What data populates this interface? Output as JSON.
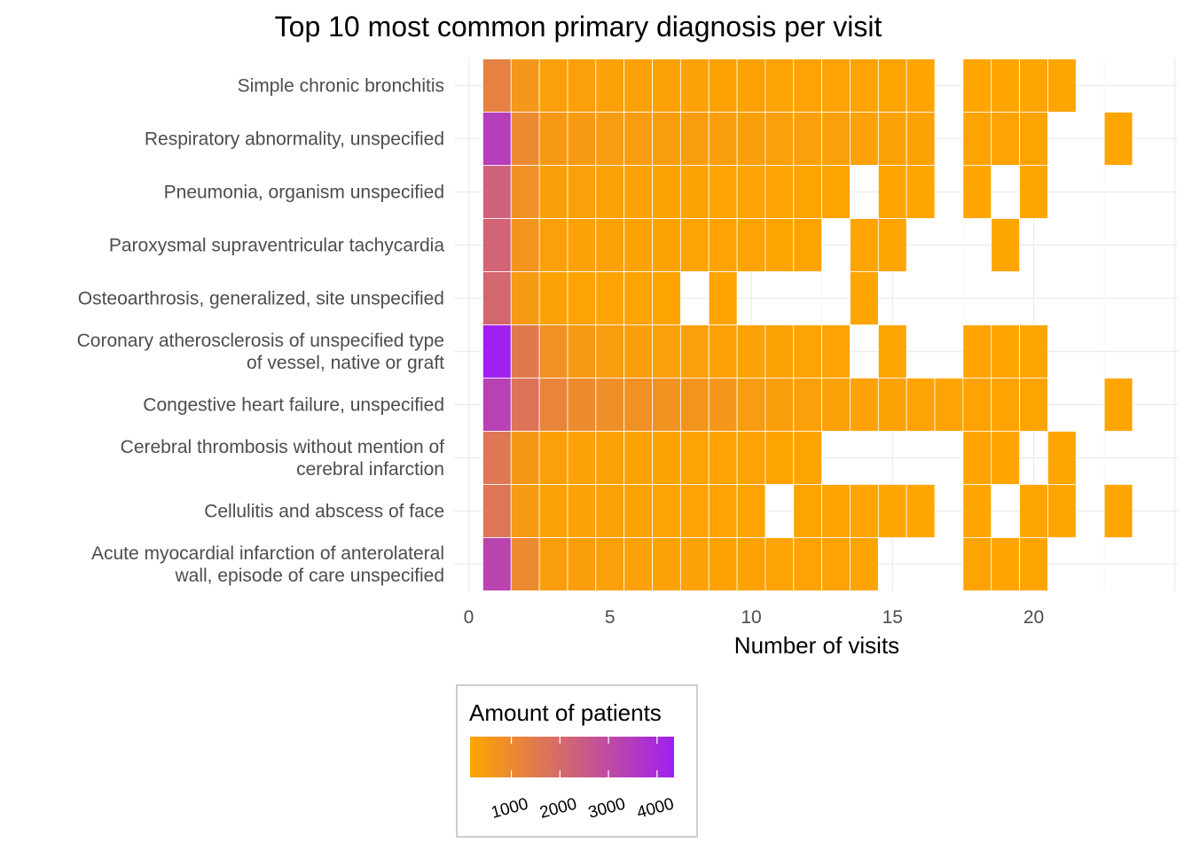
{
  "chart_data": {
    "type": "heatmap",
    "title": "Top 10 most common primary diagnosis per visit",
    "xlabel": "Number of visits",
    "ylabel": "",
    "xlim": [
      0,
      25
    ],
    "x_ticks": [
      0,
      5,
      10,
      15,
      20
    ],
    "grid": true,
    "legend_position": "bottom",
    "legend": {
      "title": "Amount of patients",
      "range": [
        150,
        4350
      ],
      "ticks": [
        1000,
        2000,
        3000,
        4000
      ],
      "color_low": "#FFA500",
      "color_high": "#A020F0"
    },
    "rows": [
      {
        "label_lines": [
          "Simple chronic bronchitis"
        ],
        "cells": [
          [
            1,
            1300
          ],
          [
            2,
            600
          ],
          [
            3,
            330
          ],
          [
            4,
            300
          ],
          [
            5,
            290
          ],
          [
            6,
            280
          ],
          [
            7,
            260
          ],
          [
            8,
            250
          ],
          [
            9,
            240
          ],
          [
            10,
            230
          ],
          [
            11,
            220
          ],
          [
            12,
            210
          ],
          [
            13,
            200
          ],
          [
            14,
            190
          ],
          [
            15,
            180
          ],
          [
            16,
            170
          ],
          [
            18,
            160
          ],
          [
            19,
            150
          ],
          [
            20,
            150
          ],
          [
            21,
            150
          ]
        ]
      },
      {
        "label_lines": [
          "Respiratory abnormality, unspecified"
        ],
        "cells": [
          [
            1,
            3400
          ],
          [
            2,
            1000
          ],
          [
            3,
            520
          ],
          [
            4,
            460
          ],
          [
            5,
            440
          ],
          [
            6,
            420
          ],
          [
            7,
            410
          ],
          [
            8,
            400
          ],
          [
            9,
            380
          ],
          [
            10,
            360
          ],
          [
            11,
            340
          ],
          [
            12,
            320
          ],
          [
            13,
            300
          ],
          [
            14,
            280
          ],
          [
            15,
            260
          ],
          [
            16,
            240
          ],
          [
            18,
            220
          ],
          [
            19,
            200
          ],
          [
            20,
            190
          ],
          [
            23,
            160
          ]
        ]
      },
      {
        "label_lines": [
          "Pneumonia, organism unspecified"
        ],
        "cells": [
          [
            1,
            2300
          ],
          [
            2,
            800
          ],
          [
            3,
            350
          ],
          [
            4,
            300
          ],
          [
            5,
            280
          ],
          [
            6,
            260
          ],
          [
            7,
            240
          ],
          [
            8,
            230
          ],
          [
            9,
            220
          ],
          [
            10,
            210
          ],
          [
            11,
            200
          ],
          [
            12,
            190
          ],
          [
            13,
            180
          ],
          [
            15,
            170
          ],
          [
            16,
            160
          ],
          [
            18,
            160
          ],
          [
            20,
            150
          ]
        ]
      },
      {
        "label_lines": [
          "Paroxysmal supraventricular tachycardia"
        ],
        "cells": [
          [
            1,
            2200
          ],
          [
            2,
            700
          ],
          [
            3,
            300
          ],
          [
            4,
            280
          ],
          [
            5,
            260
          ],
          [
            6,
            240
          ],
          [
            7,
            230
          ],
          [
            8,
            220
          ],
          [
            9,
            210
          ],
          [
            10,
            200
          ],
          [
            11,
            190
          ],
          [
            12,
            180
          ],
          [
            14,
            170
          ],
          [
            15,
            160
          ],
          [
            19,
            150
          ]
        ]
      },
      {
        "label_lines": [
          "Osteoarthrosis, generalized, site unspecified"
        ],
        "cells": [
          [
            1,
            2100
          ],
          [
            2,
            500
          ],
          [
            3,
            250
          ],
          [
            4,
            220
          ],
          [
            5,
            200
          ],
          [
            6,
            190
          ],
          [
            7,
            180
          ],
          [
            9,
            170
          ],
          [
            14,
            160
          ]
        ]
      },
      {
        "label_lines": [
          "Coronary atherosclerosis of unspecified type",
          "of vessel, native or graft"
        ],
        "cells": [
          [
            1,
            4350
          ],
          [
            2,
            1500
          ],
          [
            3,
            800
          ],
          [
            4,
            500
          ],
          [
            5,
            400
          ],
          [
            6,
            350
          ],
          [
            7,
            320
          ],
          [
            8,
            300
          ],
          [
            9,
            280
          ],
          [
            10,
            260
          ],
          [
            11,
            240
          ],
          [
            12,
            220
          ],
          [
            13,
            200
          ],
          [
            15,
            180
          ],
          [
            18,
            170
          ],
          [
            19,
            160
          ],
          [
            20,
            150
          ]
        ]
      },
      {
        "label_lines": [
          "Congestive heart failure, unspecified"
        ],
        "cells": [
          [
            1,
            3300
          ],
          [
            2,
            1700
          ],
          [
            3,
            1150
          ],
          [
            4,
            950
          ],
          [
            5,
            850
          ],
          [
            6,
            780
          ],
          [
            7,
            720
          ],
          [
            8,
            680
          ],
          [
            9,
            600
          ],
          [
            10,
            450
          ],
          [
            11,
            350
          ],
          [
            12,
            300
          ],
          [
            13,
            280
          ],
          [
            14,
            260
          ],
          [
            15,
            240
          ],
          [
            16,
            220
          ],
          [
            17,
            210
          ],
          [
            18,
            200
          ],
          [
            19,
            190
          ],
          [
            20,
            180
          ],
          [
            23,
            160
          ]
        ]
      },
      {
        "label_lines": [
          "Cerebral thrombosis without mention of",
          "cerebral infarction"
        ],
        "cells": [
          [
            1,
            1600
          ],
          [
            2,
            550
          ],
          [
            3,
            300
          ],
          [
            4,
            280
          ],
          [
            5,
            260
          ],
          [
            6,
            240
          ],
          [
            7,
            230
          ],
          [
            8,
            220
          ],
          [
            9,
            210
          ],
          [
            10,
            200
          ],
          [
            11,
            190
          ],
          [
            12,
            180
          ],
          [
            18,
            170
          ],
          [
            19,
            160
          ],
          [
            21,
            150
          ]
        ]
      },
      {
        "label_lines": [
          "Cellulitis and abscess of face"
        ],
        "cells": [
          [
            1,
            1650
          ],
          [
            2,
            500
          ],
          [
            3,
            280
          ],
          [
            4,
            260
          ],
          [
            5,
            240
          ],
          [
            6,
            230
          ],
          [
            7,
            220
          ],
          [
            8,
            210
          ],
          [
            9,
            200
          ],
          [
            10,
            190
          ],
          [
            12,
            180
          ],
          [
            13,
            170
          ],
          [
            14,
            160
          ],
          [
            15,
            160
          ],
          [
            16,
            150
          ],
          [
            18,
            150
          ],
          [
            20,
            150
          ],
          [
            21,
            150
          ],
          [
            23,
            150
          ]
        ]
      },
      {
        "label_lines": [
          "Acute myocardial infarction of anterolateral",
          "wall, episode of care unspecified"
        ],
        "cells": [
          [
            1,
            3200
          ],
          [
            2,
            1000
          ],
          [
            3,
            400
          ],
          [
            4,
            350
          ],
          [
            5,
            300
          ],
          [
            6,
            280
          ],
          [
            7,
            260
          ],
          [
            8,
            250
          ],
          [
            9,
            240
          ],
          [
            10,
            230
          ],
          [
            11,
            220
          ],
          [
            12,
            210
          ],
          [
            13,
            200
          ],
          [
            14,
            190
          ],
          [
            18,
            180
          ],
          [
            19,
            170
          ],
          [
            20,
            160
          ]
        ]
      }
    ]
  }
}
